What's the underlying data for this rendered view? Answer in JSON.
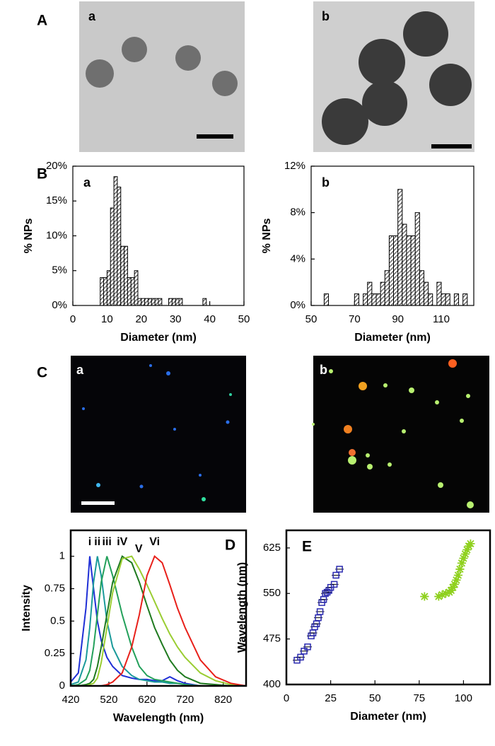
{
  "figure": {
    "panels": [
      {
        "label": "A",
        "parts": [
          "a",
          "b"
        ]
      },
      {
        "label": "C",
        "parts": [
          "a",
          "b"
        ]
      }
    ]
  },
  "chart_data": [
    {
      "type": "histogram",
      "panel": "B",
      "label": "a",
      "xlabel": "Diameter (nm)",
      "ylabel": "% NPs",
      "bins": [
        8,
        9,
        10,
        11,
        12,
        13,
        14,
        15,
        16,
        17,
        18,
        19,
        20,
        21,
        22,
        23,
        24,
        25,
        26,
        27,
        28,
        29,
        30,
        31,
        32,
        33,
        34,
        35,
        36,
        37,
        38,
        39,
        40
      ],
      "values": [
        4,
        4,
        5,
        14,
        18.5,
        17,
        8.5,
        8.5,
        4,
        4,
        5,
        1,
        1,
        1,
        1,
        1,
        1,
        1,
        0,
        0,
        1,
        1,
        1,
        1,
        0,
        0,
        0,
        0,
        0,
        0,
        1,
        0
      ],
      "xlim": [
        0,
        50
      ],
      "xticks": [
        0,
        10,
        20,
        30,
        40,
        50
      ],
      "ylim": [
        0,
        20
      ],
      "yticks": [
        {
          "value": 0,
          "label": "0%"
        },
        {
          "value": 5,
          "label": "5%"
        },
        {
          "value": 10,
          "label": "10%"
        },
        {
          "value": 15,
          "label": "15%"
        },
        {
          "value": 20,
          "label": "20%"
        }
      ]
    },
    {
      "type": "histogram",
      "label": "b",
      "xlabel": "Diameter (nm)",
      "ylabel": "% NPs",
      "bins": [
        56,
        58,
        60,
        62,
        64,
        66,
        68,
        70,
        72,
        74,
        76,
        78,
        80,
        82,
        84,
        86,
        88,
        90,
        92,
        94,
        96,
        98,
        100,
        102,
        104,
        106,
        108,
        110,
        112,
        114,
        116,
        118,
        120,
        122
      ],
      "values": [
        1,
        0,
        0,
        0,
        0,
        0,
        0,
        1,
        0,
        1,
        2,
        1,
        1,
        2,
        3,
        6,
        6,
        10,
        7,
        6,
        6,
        8,
        3,
        2,
        1,
        0,
        2,
        1,
        1,
        0,
        1,
        0,
        1
      ],
      "xlim": [
        50,
        125
      ],
      "xticks": [
        50,
        70,
        90,
        110
      ],
      "ylim": [
        0,
        12
      ],
      "yticks": [
        {
          "value": 0,
          "label": "0%"
        },
        {
          "value": 4,
          "label": "4%"
        },
        {
          "value": 8,
          "label": "8%"
        },
        {
          "value": 12,
          "label": "12%"
        }
      ]
    },
    {
      "type": "line",
      "panel": "D",
      "xlabel": "Wavelength (nm)",
      "ylabel": "Intensity",
      "x": [
        420,
        440,
        460,
        470,
        480,
        490,
        500,
        515,
        530,
        555,
        580,
        600,
        620,
        640,
        660,
        680,
        700,
        720,
        760,
        800,
        840,
        880
      ],
      "series": [
        {
          "name": "i",
          "color": "#1f2fd6",
          "values": [
            0.03,
            0.1,
            0.6,
            1,
            0.75,
            0.5,
            0.35,
            0.22,
            0.15,
            0.08,
            0.06,
            0.05,
            0.05,
            0.04,
            0.04,
            0.07,
            0.04,
            0.02,
            0,
            0,
            0,
            0
          ]
        },
        {
          "name": "ii",
          "color": "#1a9a9a",
          "values": [
            0.01,
            0.03,
            0.2,
            0.45,
            0.8,
            1,
            0.85,
            0.5,
            0.3,
            0.15,
            0.08,
            0.05,
            0.04,
            0.03,
            0.03,
            0.02,
            0.02,
            0.01,
            0,
            0,
            0,
            0
          ]
        },
        {
          "name": "iii",
          "color": "#22a05a",
          "values": [
            0,
            0.01,
            0.05,
            0.12,
            0.3,
            0.55,
            0.8,
            1,
            0.85,
            0.55,
            0.3,
            0.15,
            0.08,
            0.05,
            0.04,
            0.03,
            0.02,
            0.01,
            0,
            0,
            0,
            0
          ]
        },
        {
          "name": "iV",
          "color": "#1f7a1f",
          "values": [
            0,
            0,
            0.01,
            0.02,
            0.05,
            0.15,
            0.3,
            0.55,
            0.8,
            1,
            0.95,
            0.8,
            0.62,
            0.45,
            0.32,
            0.2,
            0.12,
            0.07,
            0.02,
            0.01,
            0,
            0
          ]
        },
        {
          "name": "V",
          "color": "#9acd32",
          "values": [
            0,
            0,
            0,
            0.01,
            0.02,
            0.06,
            0.18,
            0.45,
            0.72,
            0.98,
            1,
            0.9,
            0.78,
            0.65,
            0.52,
            0.4,
            0.3,
            0.22,
            0.1,
            0.04,
            0.01,
            0
          ]
        },
        {
          "name": "Vi",
          "color": "#e8201a",
          "values": [
            0,
            0,
            0,
            0,
            0,
            0,
            0,
            0.01,
            0.03,
            0.1,
            0.3,
            0.55,
            0.85,
            1,
            0.95,
            0.78,
            0.6,
            0.45,
            0.2,
            0.07,
            0.02,
            0
          ]
        }
      ],
      "xlim": [
        420,
        880
      ],
      "xticks": [
        420,
        520,
        620,
        720,
        820
      ],
      "ylim": [
        0,
        1.2
      ],
      "yticks": [
        0,
        0.25,
        0.5,
        0.75,
        1
      ]
    },
    {
      "type": "scatter",
      "panel": "E",
      "xlabel": "Diameter (nm)",
      "ylabel": "Wavelength (nm)",
      "series": [
        {
          "color": "#2b2bb0",
          "marker": "square",
          "x": [
            6,
            8,
            10,
            12,
            14,
            15,
            16,
            17,
            18,
            19,
            20,
            21,
            22,
            23,
            24,
            25,
            27,
            28,
            30
          ],
          "values": [
            440,
            445,
            455,
            462,
            480,
            485,
            495,
            500,
            510,
            520,
            535,
            540,
            550,
            552,
            555,
            560,
            565,
            580,
            590
          ]
        },
        {
          "color": "#8fd11e",
          "marker": "star",
          "x": [
            78,
            86,
            88,
            90,
            92,
            93,
            94,
            95,
            96,
            97,
            98,
            99,
            100,
            101,
            102,
            103,
            104
          ],
          "values": [
            545,
            545,
            548,
            550,
            552,
            555,
            560,
            565,
            572,
            580,
            590,
            600,
            608,
            615,
            622,
            628,
            632
          ]
        }
      ],
      "xlim": [
        0,
        115
      ],
      "xticks": [
        0,
        25,
        50,
        75,
        100
      ],
      "ylim": [
        400,
        654
      ],
      "yticks": [
        400,
        475,
        550,
        625
      ]
    }
  ]
}
